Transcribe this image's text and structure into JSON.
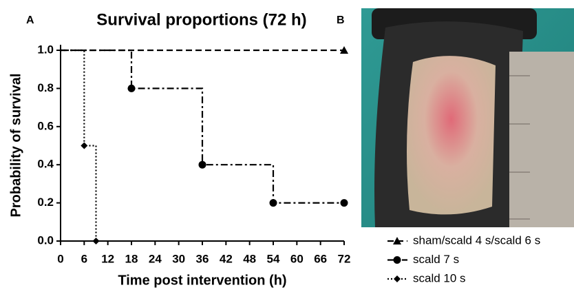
{
  "panel_labels": [
    "A",
    "B"
  ],
  "chart_data": {
    "type": "step",
    "title": "Survival proportions (72 h)",
    "x_label": "Time post intervention (h)",
    "y_label": "Probability of survival",
    "xlim": [
      0,
      72
    ],
    "xticks": [
      0,
      6,
      12,
      18,
      24,
      30,
      36,
      42,
      48,
      54,
      60,
      66,
      72
    ],
    "ylim": [
      0,
      1
    ],
    "yticks": [
      {
        "value": 0,
        "label": "0.0"
      },
      0.2,
      0.4,
      0.6,
      0.8,
      {
        "value": 1,
        "label": "1.0"
      }
    ],
    "series": [
      {
        "name": "sham/scald 4 s/scald 6 s",
        "color": "#000000",
        "linestyle": "dashed",
        "marker": "triangle",
        "x": [
          0,
          72
        ],
        "values": [
          1,
          1
        ]
      },
      {
        "name": "scald 7 s",
        "color": "#000000",
        "linestyle": "dashdot",
        "marker": "circle",
        "x": [
          0,
          18,
          36,
          54,
          72
        ],
        "values": [
          1,
          0.8,
          0.4,
          0.2,
          0.2
        ]
      },
      {
        "name": "scald 10 s",
        "color": "#000000",
        "linestyle": "dotted",
        "marker": "diamond",
        "x": [
          0,
          6,
          9
        ],
        "values": [
          1,
          0.5,
          0
        ]
      }
    ]
  }
}
